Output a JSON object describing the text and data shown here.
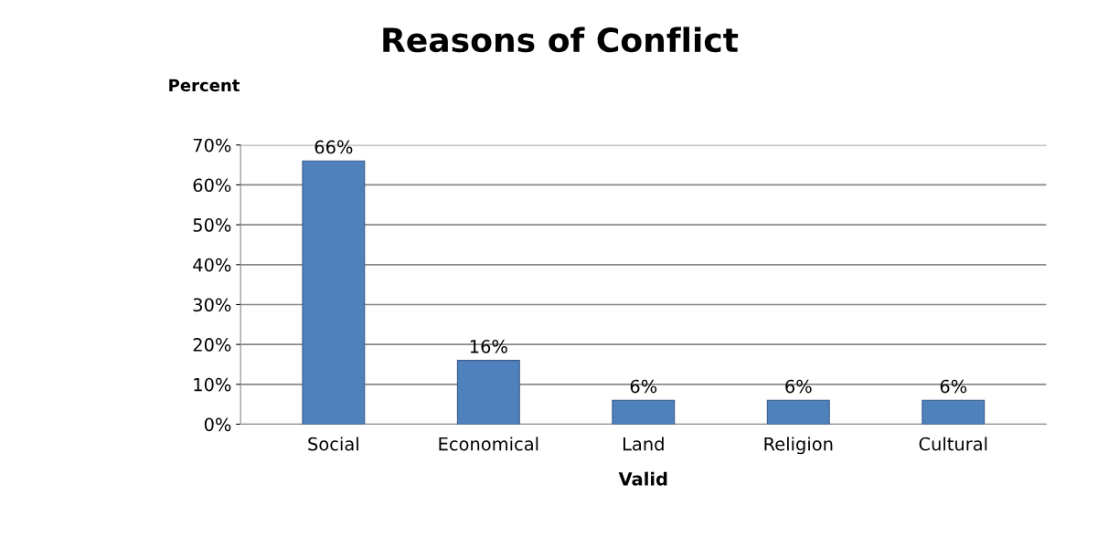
{
  "chart_data": {
    "type": "bar",
    "title": "Reasons of Conflict",
    "ylabel": "Percent",
    "xlabel": "Valid",
    "categories": [
      "Social",
      "Economical",
      "Land",
      "Religion",
      "Cultural"
    ],
    "values": [
      66,
      16,
      6,
      6,
      6
    ],
    "value_labels": [
      "66%",
      "16%",
      "6%",
      "6%",
      "6%"
    ],
    "color": "#4f81bd",
    "ylim": [
      0,
      70
    ],
    "yticks": [
      {
        "value": 0,
        "label": "0%"
      },
      {
        "value": 10,
        "label": "10%"
      },
      {
        "value": 20,
        "label": "20%"
      },
      {
        "value": 30,
        "label": "30%"
      },
      {
        "value": 40,
        "label": "40%"
      },
      {
        "value": 50,
        "label": "50%"
      },
      {
        "value": 60,
        "label": "60%"
      },
      {
        "value": 70,
        "label": "70%"
      }
    ],
    "grid": "y",
    "legend": false
  }
}
